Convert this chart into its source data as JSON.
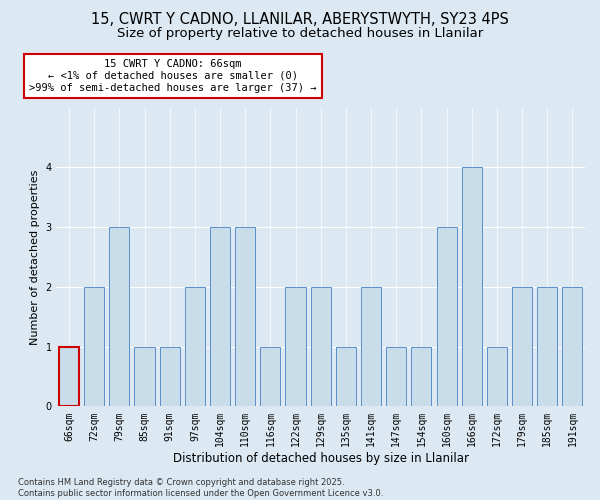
{
  "title": "15, CWRT Y CADNO, LLANILAR, ABERYSTWYTH, SY23 4PS",
  "subtitle": "Size of property relative to detached houses in Llanilar",
  "xlabel": "Distribution of detached houses by size in Llanilar",
  "ylabel": "Number of detached properties",
  "categories": [
    "66sqm",
    "72sqm",
    "79sqm",
    "85sqm",
    "91sqm",
    "97sqm",
    "104sqm",
    "110sqm",
    "116sqm",
    "122sqm",
    "129sqm",
    "135sqm",
    "141sqm",
    "147sqm",
    "154sqm",
    "160sqm",
    "166sqm",
    "172sqm",
    "179sqm",
    "185sqm",
    "191sqm"
  ],
  "values": [
    1,
    2,
    3,
    1,
    1,
    2,
    3,
    3,
    1,
    2,
    2,
    1,
    2,
    1,
    1,
    3,
    4,
    1,
    2,
    2,
    2
  ],
  "bar_color": "#c9dcea",
  "bar_edge_color": "#5b8fc9",
  "highlight_index": 0,
  "highlight_edge_color": "#cc0000",
  "annotation_text": "15 CWRT Y CADNO: 66sqm\n← <1% of detached houses are smaller (0)\n>99% of semi-detached houses are larger (37) →",
  "annotation_box_color": "#ffffff",
  "annotation_edge_color": "#cc0000",
  "ylim": [
    0,
    5
  ],
  "yticks": [
    0,
    1,
    2,
    3,
    4
  ],
  "background_color": "#dce9f2",
  "plot_bg_color": "#dce9f2",
  "footer": "Contains HM Land Registry data © Crown copyright and database right 2025.\nContains public sector information licensed under the Open Government Licence v3.0.",
  "title_fontsize": 10.5,
  "subtitle_fontsize": 9.5,
  "xlabel_fontsize": 8.5,
  "ylabel_fontsize": 8,
  "tick_fontsize": 7,
  "annotation_fontsize": 7.5,
  "footer_fontsize": 6
}
